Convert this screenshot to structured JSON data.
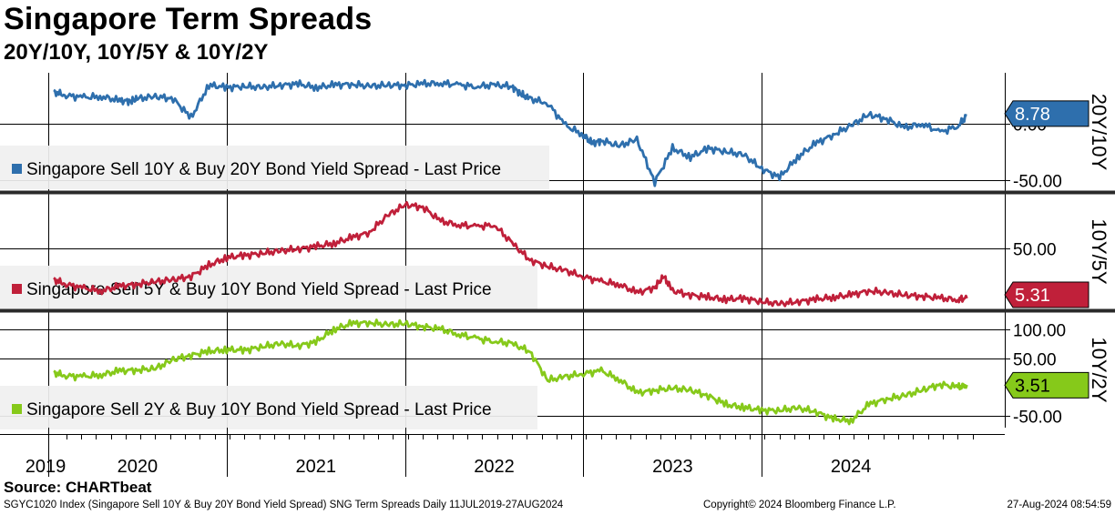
{
  "header": {
    "title": "Singapore Term Spreads",
    "subtitle": "20Y/10Y, 10Y/5Y & 10Y/2Y"
  },
  "colors": {
    "blue": "#2e6fad",
    "red": "#c0203a",
    "green": "#86c91a"
  },
  "chart_data": [
    {
      "type": "line",
      "panel_label": "20Y/10Y",
      "legend": "Singapore Sell 10Y & Buy 20Y Bond Yield Spread - Last Price",
      "last_value": 8.78,
      "last_label": "8.78",
      "yticks": [
        0,
        -50
      ],
      "ytick_labels": [
        "0.00",
        "-50.00"
      ],
      "ylim": [
        -60,
        45
      ],
      "x": [
        2019.53,
        2019.6,
        2019.7,
        2019.8,
        2019.9,
        2019.96,
        2020.0,
        2020.1,
        2020.2,
        2020.3,
        2020.4,
        2020.5,
        2020.6,
        2020.7,
        2020.8,
        2020.9,
        2021.0,
        2021.1,
        2021.2,
        2021.3,
        2021.4,
        2021.5,
        2021.6,
        2021.7,
        2021.8,
        2021.9,
        2022.0,
        2022.1,
        2022.15,
        2022.2,
        2022.3,
        2022.4,
        2022.5,
        2022.55,
        2022.6,
        2022.7,
        2022.8,
        2022.9,
        2023.0,
        2023.1,
        2023.2,
        2023.3,
        2023.4,
        2023.5,
        2023.6,
        2023.7,
        2023.8,
        2023.9,
        2024.0,
        2024.1,
        2024.2,
        2024.3,
        2024.4,
        2024.5,
        2024.6,
        2024.65
      ],
      "values": [
        28,
        25,
        23,
        24,
        20,
        20,
        22,
        24,
        22,
        5,
        34,
        32,
        33,
        32,
        34,
        35,
        32,
        34,
        35,
        33,
        34,
        34,
        35,
        36,
        34,
        33,
        34,
        33,
        26,
        22,
        18,
        -2,
        -10,
        -18,
        -15,
        -20,
        -14,
        -52,
        -22,
        -30,
        -22,
        -25,
        -28,
        -40,
        -48,
        -30,
        -18,
        -10,
        -2,
        8,
        4,
        -4,
        0,
        -8,
        -2,
        7
      ],
      "series_name": "Singapore Sell 10Y & Buy 20Y Bond Yield Spread"
    },
    {
      "type": "line",
      "panel_label": "10Y/5Y",
      "legend": "Singapore Sell 5Y & Buy 10Y Bond Yield Spread - Last Price",
      "last_value": 5.31,
      "last_label": "5.31",
      "yticks": [
        50
      ],
      "ytick_labels": [
        "50.00"
      ],
      "ylim": [
        -5,
        100
      ],
      "x": [
        2019.53,
        2019.6,
        2019.7,
        2019.8,
        2019.9,
        2020.0,
        2020.1,
        2020.2,
        2020.3,
        2020.4,
        2020.5,
        2020.6,
        2020.7,
        2020.8,
        2020.9,
        2021.0,
        2021.1,
        2021.2,
        2021.3,
        2021.4,
        2021.5,
        2021.6,
        2021.7,
        2021.8,
        2021.9,
        2022.0,
        2022.1,
        2022.2,
        2022.3,
        2022.4,
        2022.5,
        2022.6,
        2022.7,
        2022.8,
        2022.9,
        2022.95,
        2023.0,
        2023.1,
        2023.2,
        2023.3,
        2023.4,
        2023.5,
        2023.6,
        2023.7,
        2023.8,
        2023.9,
        2024.0,
        2024.1,
        2024.2,
        2024.3,
        2024.4,
        2024.5,
        2024.6,
        2024.65
      ],
      "values": [
        22,
        18,
        14,
        12,
        16,
        18,
        20,
        22,
        25,
        35,
        42,
        44,
        46,
        48,
        50,
        52,
        55,
        60,
        65,
        80,
        90,
        88,
        75,
        72,
        70,
        72,
        55,
        40,
        34,
        30,
        25,
        20,
        18,
        10,
        15,
        25,
        12,
        8,
        6,
        4,
        5,
        2,
        0,
        2,
        4,
        6,
        8,
        12,
        10,
        8,
        7,
        5,
        4,
        5
      ],
      "series_name": "Singapore Sell 5Y & Buy 10Y Bond Yield Spread"
    },
    {
      "type": "line",
      "panel_label": "10Y/2Y",
      "legend": "Singapore Sell 2Y & Buy 10Y Bond Yield Spread - Last Price",
      "last_value": 3.51,
      "last_label": "3.51",
      "yticks": [
        100,
        50,
        -50
      ],
      "ytick_labels": [
        "100.00",
        "50.00",
        "-50.00"
      ],
      "ylim": [
        -70,
        130
      ],
      "x": [
        2019.53,
        2019.6,
        2019.7,
        2019.8,
        2019.9,
        2020.0,
        2020.1,
        2020.2,
        2020.3,
        2020.4,
        2020.5,
        2020.6,
        2020.7,
        2020.8,
        2020.9,
        2021.0,
        2021.1,
        2021.2,
        2021.3,
        2021.4,
        2021.5,
        2021.6,
        2021.7,
        2021.8,
        2021.9,
        2022.0,
        2022.1,
        2022.2,
        2022.3,
        2022.4,
        2022.5,
        2022.6,
        2022.7,
        2022.8,
        2022.9,
        2023.0,
        2023.1,
        2023.2,
        2023.3,
        2023.4,
        2023.5,
        2023.6,
        2023.7,
        2023.8,
        2023.9,
        2024.0,
        2024.1,
        2024.2,
        2024.3,
        2024.4,
        2024.5,
        2024.6,
        2024.65
      ],
      "values": [
        25,
        20,
        18,
        22,
        28,
        30,
        32,
        48,
        55,
        62,
        65,
        64,
        70,
        75,
        72,
        78,
        100,
        110,
        112,
        108,
        110,
        105,
        100,
        92,
        84,
        80,
        75,
        62,
        12,
        18,
        24,
        28,
        14,
        -10,
        -5,
        -2,
        -5,
        -15,
        -30,
        -35,
        -40,
        -40,
        -36,
        -42,
        -55,
        -58,
        -30,
        -20,
        -15,
        -5,
        5,
        0,
        4
      ],
      "series_name": "Singapore Sell 2Y & Buy 10Y Bond Yield Spread"
    }
  ],
  "x_axis": {
    "year_labels": [
      "2019",
      "2020",
      "2021",
      "2022",
      "2023",
      "2024"
    ],
    "year_label_pos": [
      2019.27,
      2020.0,
      2021.0,
      2022.0,
      2023.0,
      2024.0
    ]
  },
  "source": "Source: CHARTbeat",
  "footer": {
    "left": "SGYC1020 Index (Singapore Sell 10Y & Buy 20Y Bond Yield Spread) SNG Term Spreads  Daily 11JUL2019-27AUG2024",
    "middle": "Copyright© 2024 Bloomberg Finance L.P.",
    "right": "27-Aug-2024 08:54:59"
  }
}
